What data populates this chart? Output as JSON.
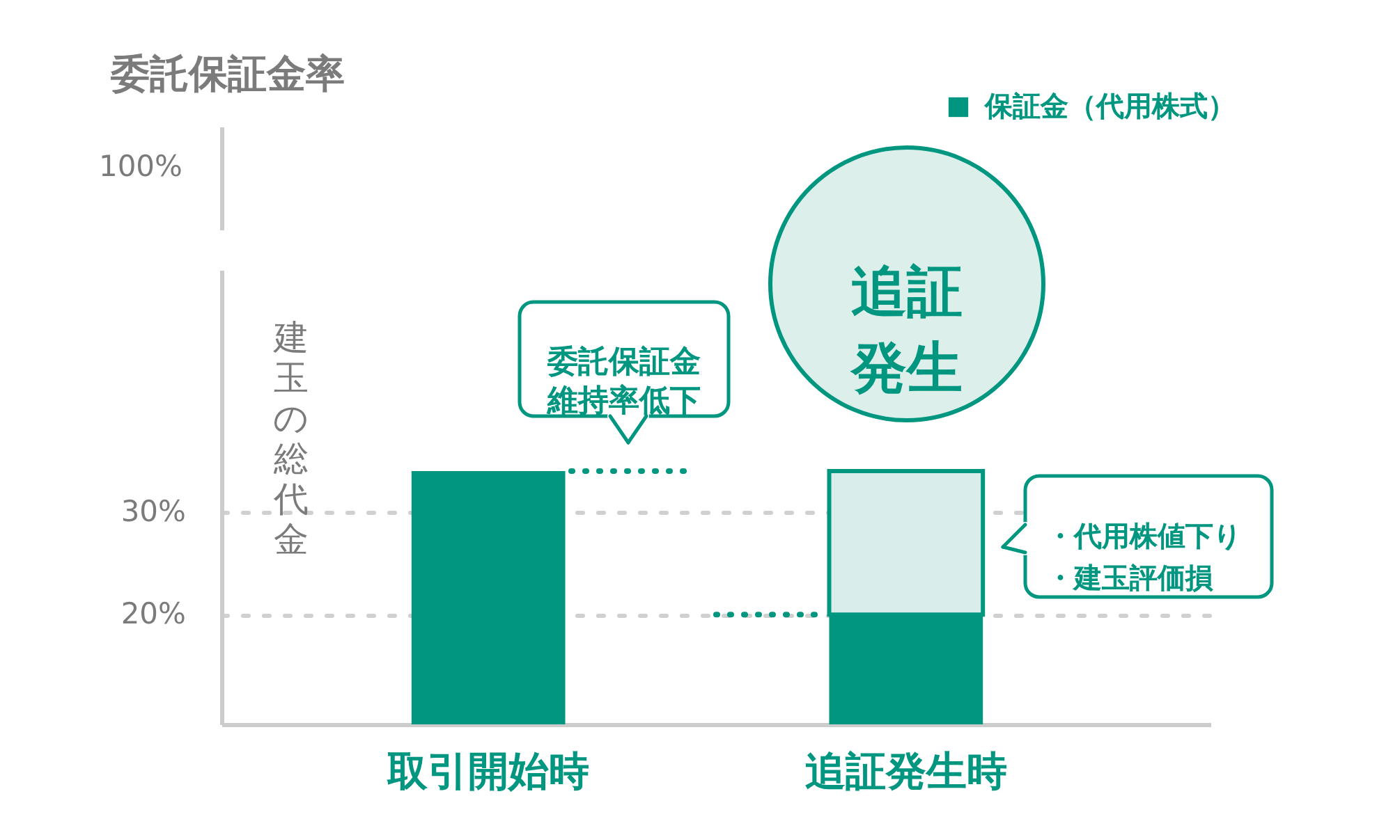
{
  "chart_data": [
    {
      "type": "other",
      "ylabel": "委託保証金率",
      "annotations": [
        "100%"
      ]
    },
    {
      "type": "bar",
      "stacked": true,
      "categories": [
        "取引開始時",
        "追証発生時"
      ],
      "series": [
        {
          "name": "保証金（代用株式）",
          "color": "#009680",
          "values": [
            34,
            20
          ]
        },
        {
          "color": "#d9eeea",
          "values": [
            null,
            14
          ]
        }
      ],
      "ylim": [
        9.3,
        53.6
      ],
      "yticks": [
        {
          "value": 20,
          "label": "20%"
        },
        {
          "value": 30,
          "label": "30%"
        }
      ],
      "grid": "y",
      "legend": "top right",
      "ref_lines": [
        {
          "axis": "y",
          "value": 34,
          "color": "#009680",
          "line_style": "dotted"
        },
        {
          "axis": "y",
          "value": 20,
          "color": "#009680",
          "line_style": "dotted"
        }
      ],
      "annotations": [
        "建玉の総代金",
        "委託保証金維持率低下",
        "追証発生",
        "・代用株値下り・建玉評価損"
      ]
    }
  ]
}
